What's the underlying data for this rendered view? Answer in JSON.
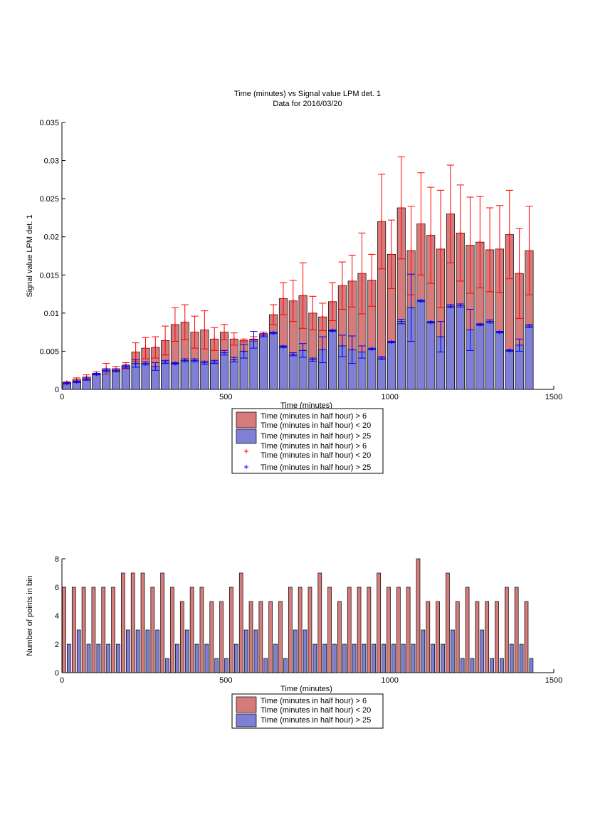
{
  "figure": {
    "title_line1": "Time (minutes) vs Signal value LPM det. 1",
    "title_line2": "Data for 2016/03/20"
  },
  "colors": {
    "red_bar": "#d57b7b",
    "blue_bar": "#7f7fd6",
    "red_err": "#ff0000",
    "blue_err": "#0000ff"
  },
  "chart_data": [
    {
      "type": "bar",
      "xlabel": "Time (minutes)",
      "ylabel": "Signal value LPM det. 1",
      "xlim": [
        0,
        1500
      ],
      "ylim": [
        0,
        0.035
      ],
      "xticks": [
        "0",
        "500",
        "1000",
        "1500"
      ],
      "yticks": [
        "0",
        "0.005",
        "0.01",
        "0.015",
        "0.02",
        "0.025",
        "0.03",
        "0.035"
      ],
      "legend_position": "below",
      "legend": [
        "Time (minutes in half hour) > 6\nTime (minutes in half hour) < 20",
        "Time (minutes in half hour) > 25",
        "Time (minutes in half hour) > 6\nTime (minutes in half hour) < 20",
        "Time (minutes in half hour) > 25"
      ],
      "x": [
        15,
        45,
        75,
        105,
        135,
        165,
        195,
        225,
        255,
        285,
        315,
        345,
        375,
        405,
        435,
        465,
        495,
        525,
        555,
        585,
        615,
        645,
        675,
        705,
        735,
        765,
        795,
        825,
        855,
        885,
        915,
        945,
        975,
        1005,
        1035,
        1065,
        1095,
        1125,
        1155,
        1185,
        1215,
        1245,
        1275,
        1305,
        1335,
        1365,
        1395,
        1425
      ],
      "series": [
        {
          "name": "Time (minutes in half hour) > 6\nTime (minutes in half hour) < 20",
          "values": [
            0.0009,
            0.0013,
            0.0016,
            0.0021,
            0.0027,
            0.0027,
            0.0031,
            0.0049,
            0.0054,
            0.0055,
            0.0064,
            0.0085,
            0.0088,
            0.0075,
            0.0078,
            0.0066,
            0.0075,
            0.0066,
            0.0064,
            0.0066,
            0.0073,
            0.0098,
            0.0119,
            0.0116,
            0.0123,
            0.01,
            0.0095,
            0.0115,
            0.0136,
            0.0142,
            0.0152,
            0.0143,
            0.022,
            0.0177,
            0.0238,
            0.0182,
            0.0217,
            0.0202,
            0.0184,
            0.023,
            0.0205,
            0.0189,
            0.0193,
            0.0183,
            0.0184,
            0.0203,
            0.0152,
            0.0182
          ],
          "errors": [
            0.0001,
            0.0002,
            0.0003,
            0.0002,
            0.0007,
            0.0003,
            0.0004,
            0.0012,
            0.0014,
            0.0014,
            0.0019,
            0.0022,
            0.0023,
            0.0021,
            0.0025,
            0.0015,
            0.001,
            0.0008,
            0.0002,
            0.0003,
            0.0002,
            0.0013,
            0.0021,
            0.0027,
            0.0043,
            0.0022,
            0.0018,
            0.0025,
            0.0031,
            0.0034,
            0.0053,
            0.0034,
            0.0062,
            0.0045,
            0.0067,
            0.0058,
            0.0067,
            0.0063,
            0.0077,
            0.0064,
            0.0063,
            0.0063,
            0.006,
            0.0055,
            0.0057,
            0.0058,
            0.0059,
            0.0058
          ]
        },
        {
          "name": "Time (minutes in half hour) > 25",
          "values": [
            0.0008,
            0.001,
            0.0014,
            0.002,
            0.0025,
            0.0025,
            0.003,
            0.0034,
            0.0034,
            0.003,
            0.0036,
            0.0034,
            0.0038,
            0.0038,
            0.0035,
            0.0036,
            0.0048,
            0.0039,
            0.005,
            0.0065,
            0.0071,
            0.0074,
            0.0056,
            0.0046,
            0.0051,
            0.0039,
            0.0052,
            0.0077,
            0.0057,
            0.0052,
            0.0049,
            0.0053,
            0.0041,
            0.0062,
            0.0089,
            0.0107,
            0.0116,
            0.0088,
            0.0069,
            0.0109,
            0.011,
            0.0078,
            0.0085,
            0.0089,
            0.0075,
            0.0051,
            0.0058,
            0.0083
          ],
          "errors": [
            0.0001,
            0.0001,
            0.0002,
            0.0001,
            0.0002,
            0.0002,
            0.0002,
            0.0005,
            0.0002,
            0.0005,
            0.0002,
            0.0001,
            0.0002,
            0.0002,
            0.0002,
            0.0002,
            0.0003,
            0.0003,
            0.0009,
            0.0011,
            0.0002,
            0.0001,
            0.0001,
            0.0002,
            0.0009,
            0.0002,
            0.0017,
            0.0001,
            0.0014,
            0.0018,
            0.0008,
            0.0001,
            0.0002,
            0.0001,
            0.0003,
            0.0044,
            0.0001,
            0.0001,
            0.002,
            0.0002,
            0.0002,
            0.0027,
            0.0001,
            0.0002,
            0.0001,
            0.0001,
            0.0008,
            0.0002
          ]
        }
      ]
    },
    {
      "type": "bar",
      "xlabel": "Time (minutes)",
      "ylabel": "Number of points in bin",
      "xlim": [
        0,
        1500
      ],
      "ylim": [
        0,
        8
      ],
      "xticks": [
        "0",
        "500",
        "1000",
        "1500"
      ],
      "yticks": [
        "0",
        "2",
        "4",
        "6",
        "8"
      ],
      "legend_position": "below",
      "legend": [
        "Time (minutes in half hour) > 6\nTime (minutes in half hour) < 20",
        "Time (minutes in half hour) > 25"
      ],
      "x": [
        15,
        45,
        75,
        105,
        135,
        165,
        195,
        225,
        255,
        285,
        315,
        345,
        375,
        405,
        435,
        465,
        495,
        525,
        555,
        585,
        615,
        645,
        675,
        705,
        735,
        765,
        795,
        825,
        855,
        885,
        915,
        945,
        975,
        1005,
        1035,
        1065,
        1095,
        1125,
        1155,
        1185,
        1215,
        1245,
        1275,
        1305,
        1335,
        1365,
        1395,
        1425
      ],
      "series": [
        {
          "name": "Time (minutes in half hour) > 6\nTime (minutes in half hour) < 20",
          "values": [
            6,
            6,
            6,
            6,
            6,
            6,
            7,
            7,
            7,
            6,
            7,
            6,
            5,
            6,
            6,
            5,
            5,
            6,
            7,
            5,
            5,
            5,
            5,
            6,
            6,
            6,
            7,
            6,
            5,
            6,
            6,
            6,
            7,
            6,
            6,
            6,
            8,
            5,
            5,
            7,
            5,
            6,
            5,
            5,
            5,
            6,
            6,
            5
          ]
        },
        {
          "name": "Time (minutes in half hour) > 25",
          "values": [
            2,
            3,
            2,
            2,
            2,
            2,
            3,
            3,
            3,
            3,
            1,
            2,
            3,
            2,
            2,
            1,
            1,
            2,
            3,
            3,
            1,
            2,
            1,
            3,
            3,
            2,
            2,
            2,
            2,
            2,
            2,
            2,
            2,
            2,
            2,
            2,
            3,
            2,
            2,
            3,
            1,
            1,
            3,
            1,
            1,
            2,
            2,
            1
          ]
        }
      ]
    }
  ]
}
